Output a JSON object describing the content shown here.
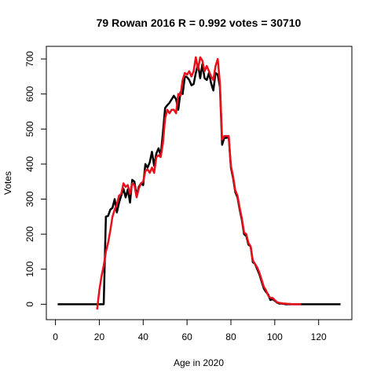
{
  "chart_data": {
    "type": "line",
    "title": "79 Rowan 2016 R = 0.992 votes = 30710",
    "xlabel": "Age in 2020",
    "ylabel": "Votes",
    "xlim": [
      -4.16,
      135.16
    ],
    "ylim": [
      -44,
      736
    ],
    "xticks": [
      0,
      20,
      40,
      60,
      80,
      100,
      120
    ],
    "yticks": [
      0,
      100,
      200,
      300,
      400,
      500,
      600,
      700
    ],
    "series": [
      {
        "color": "#000000",
        "x": [
          1,
          2,
          3,
          4,
          5,
          6,
          7,
          8,
          9,
          10,
          11,
          12,
          13,
          14,
          15,
          16,
          17,
          18,
          19,
          20,
          21,
          22,
          23,
          24,
          25,
          26,
          27,
          28,
          29,
          30,
          31,
          32,
          33,
          34,
          35,
          36,
          37,
          38,
          39,
          40,
          41,
          42,
          43,
          44,
          45,
          46,
          47,
          48,
          49,
          50,
          51,
          52,
          53,
          54,
          55,
          56,
          57,
          58,
          59,
          60,
          61,
          62,
          63,
          64,
          65,
          66,
          67,
          68,
          69,
          70,
          71,
          72,
          73,
          74,
          75,
          76,
          77,
          78,
          79,
          80,
          81,
          82,
          83,
          84,
          85,
          86,
          87,
          88,
          89,
          90,
          91,
          92,
          93,
          94,
          95,
          96,
          97,
          98,
          99,
          100,
          101,
          102,
          103,
          104,
          105,
          106,
          107,
          108,
          109,
          110,
          111,
          112,
          113,
          114,
          115,
          116,
          117,
          118,
          119,
          120,
          121,
          122,
          123,
          124,
          125,
          126,
          127,
          128,
          129,
          130
        ],
        "values": [
          0,
          0,
          0,
          0,
          0,
          0,
          0,
          0,
          0,
          0,
          0,
          0,
          0,
          0,
          0,
          0,
          0,
          0,
          0,
          0,
          0,
          0,
          250,
          252,
          270,
          275,
          300,
          262,
          290,
          310,
          330,
          305,
          328,
          290,
          355,
          350,
          310,
          335,
          345,
          340,
          400,
          390,
          405,
          435,
          395,
          430,
          445,
          425,
          490,
          560,
          568,
          575,
          585,
          595,
          585,
          555,
          605,
          600,
          650,
          648,
          640,
          625,
          628,
          660,
          685,
          645,
          685,
          645,
          640,
          660,
          630,
          610,
          660,
          655,
          620,
          455,
          475,
          475,
          478,
          390,
          360,
          320,
          305,
          270,
          240,
          200,
          195,
          170,
          165,
          120,
          115,
          100,
          85,
          65,
          45,
          35,
          28,
          12,
          15,
          10,
          5,
          2,
          2,
          1,
          0,
          0,
          0,
          0,
          0,
          0,
          0,
          0,
          0,
          0,
          0,
          0,
          0,
          0,
          0,
          0,
          0,
          0,
          0,
          0,
          0,
          0,
          0,
          0,
          0,
          0
        ]
      },
      {
        "color": "#e8101a",
        "x": [
          19,
          20,
          21,
          22,
          23,
          24,
          25,
          26,
          27,
          28,
          29,
          30,
          31,
          32,
          33,
          34,
          35,
          36,
          37,
          38,
          39,
          40,
          41,
          42,
          43,
          44,
          45,
          46,
          47,
          48,
          49,
          50,
          51,
          52,
          53,
          54,
          55,
          56,
          57,
          58,
          59,
          60,
          61,
          62,
          63,
          64,
          65,
          66,
          67,
          68,
          69,
          70,
          71,
          72,
          73,
          74,
          75,
          76,
          77,
          78,
          79,
          80,
          81,
          82,
          83,
          84,
          85,
          86,
          87,
          88,
          89,
          90,
          91,
          92,
          93,
          94,
          95,
          96,
          97,
          98,
          99,
          100,
          101,
          102,
          103,
          104,
          105,
          106,
          107,
          108,
          109,
          110,
          111,
          112
        ],
        "values": [
          -15,
          40,
          80,
          110,
          150,
          175,
          210,
          250,
          270,
          285,
          310,
          315,
          345,
          335,
          340,
          315,
          345,
          340,
          305,
          330,
          345,
          350,
          380,
          385,
          375,
          390,
          375,
          420,
          425,
          420,
          460,
          530,
          555,
          545,
          555,
          555,
          545,
          600,
          595,
          640,
          660,
          655,
          665,
          650,
          665,
          705,
          670,
          705,
          695,
          665,
          680,
          665,
          650,
          640,
          680,
          700,
          630,
          470,
          480,
          480,
          480,
          395,
          365,
          325,
          310,
          275,
          245,
          205,
          200,
          175,
          165,
          125,
          115,
          105,
          90,
          70,
          50,
          40,
          25,
          18,
          18,
          12,
          6,
          4,
          3,
          2,
          2,
          1,
          1,
          0,
          0,
          0,
          0,
          0
        ]
      }
    ]
  }
}
